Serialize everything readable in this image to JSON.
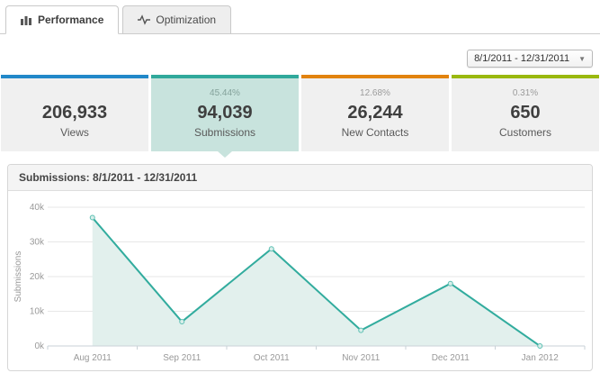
{
  "tabs": [
    {
      "label": "Performance",
      "icon": "bar-chart-icon",
      "active": true
    },
    {
      "label": "Optimization",
      "icon": "pulse-icon",
      "active": false
    }
  ],
  "date_range_select": {
    "value": "8/1/2011 - 12/31/2011"
  },
  "metrics": [
    {
      "value": "206,933",
      "label": "Views",
      "percent": "",
      "bar_color": "#2288c9",
      "selected": false
    },
    {
      "value": "94,039",
      "label": "Submissions",
      "percent": "45.44%",
      "bar_color": "#30a99b",
      "selected": true
    },
    {
      "value": "26,244",
      "label": "New Contacts",
      "percent": "12.68%",
      "bar_color": "#e2830f",
      "selected": false
    },
    {
      "value": "650",
      "label": "Customers",
      "percent": "0.31%",
      "bar_color": "#9ab90f",
      "selected": false
    }
  ],
  "chart_panel": {
    "title": "Submissions: 8/1/2011 - 12/31/2011"
  },
  "chart_data": {
    "type": "area",
    "categories": [
      "Aug 2011",
      "Sep 2011",
      "Oct 2011",
      "Nov 2011",
      "Dec 2011",
      "Jan 2012"
    ],
    "values": [
      37000,
      7000,
      28000,
      4500,
      18000,
      0
    ],
    "title": "Submissions: 8/1/2011 - 12/31/2011",
    "xlabel": "",
    "ylabel": "Submissions",
    "ylim": [
      0,
      40000
    ],
    "yticks": [
      0,
      10000,
      20000,
      30000,
      40000
    ],
    "ytick_labels": [
      "0k",
      "10k",
      "20k",
      "30k",
      "40k"
    ],
    "grid": true,
    "legend": false,
    "line_color": "#32ac9e",
    "fill_color": "#e2f0ed",
    "marker_fill": "#d9eeea",
    "marker_stroke": "#5bbfb2",
    "axis_color": "#c9d2d7",
    "grid_color": "#e7e7e7",
    "tick_label_color": "#999999"
  }
}
